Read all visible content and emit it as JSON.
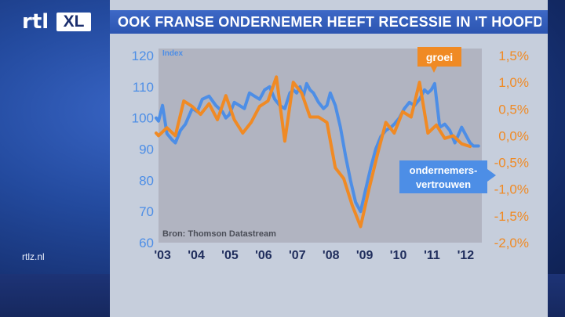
{
  "header": {
    "title": "OOK FRANSE ONDERNEMER HEEFT RECESSIE IN 'T HOOFD"
  },
  "logo": {
    "rtl": "rtl",
    "xl": "XL"
  },
  "footer": {
    "site": "rtlz.nl"
  },
  "colors": {
    "growth": "#f08a24",
    "confidence": "#4d8ee6",
    "panel": "#c6cedc",
    "plot": "#b1b4c1",
    "header": "#3560bd"
  },
  "chart_data": {
    "type": "line",
    "title": "",
    "source": "Bron: Thomson Datastream",
    "left_axis": {
      "label": "Index",
      "ylim": [
        60,
        120
      ],
      "ticks": [
        "120",
        "110",
        "100",
        "90",
        "80",
        "70",
        "60"
      ]
    },
    "right_axis": {
      "ylim": [
        -2.0,
        1.5
      ],
      "ticks": [
        "1,5%",
        "1,0%",
        "0,5%",
        "0,0%",
        "-0,5%",
        "-1,0%",
        "-1,5%",
        "-2,0%"
      ]
    },
    "x_ticks": [
      "'03",
      "'04",
      "'05",
      "'06",
      "'07",
      "'08",
      "'09",
      "'10",
      "'11",
      "'12"
    ],
    "xlim": [
      2003.0,
      2012.6
    ],
    "series": [
      {
        "name": "groei",
        "axis": "right",
        "color": "#f08a24",
        "x": [
          2002.93,
          2003.0,
          2003.25,
          2003.5,
          2003.75,
          2004.0,
          2004.25,
          2004.5,
          2004.75,
          2005.0,
          2005.25,
          2005.5,
          2005.75,
          2006.0,
          2006.25,
          2006.5,
          2006.75,
          2007.0,
          2007.25,
          2007.5,
          2007.75,
          2008.0,
          2008.25,
          2008.5,
          2008.75,
          2009.0,
          2009.25,
          2009.5,
          2009.75,
          2010.0,
          2010.25,
          2010.5,
          2010.75,
          2011.0,
          2011.25,
          2011.5,
          2011.75,
          2012.0,
          2012.25
        ],
        "y": [
          0.05,
          0.0,
          0.15,
          0.0,
          0.65,
          0.55,
          0.4,
          0.6,
          0.3,
          0.75,
          0.3,
          0.05,
          0.25,
          0.55,
          0.65,
          1.1,
          -0.1,
          1.0,
          0.8,
          0.35,
          0.35,
          0.25,
          -0.6,
          -0.8,
          -1.3,
          -1.7,
          -1.0,
          -0.35,
          0.25,
          0.05,
          0.45,
          0.35,
          1.0,
          0.05,
          0.2,
          -0.05,
          0.0,
          -0.15,
          -0.2
        ]
      },
      {
        "name": "ondernemersvertrouwen",
        "axis": "left",
        "color": "#4d8ee6",
        "x": [
          2002.93,
          2003.0,
          2003.12,
          2003.25,
          2003.4,
          2003.5,
          2003.65,
          2003.8,
          2004.0,
          2004.15,
          2004.3,
          2004.5,
          2004.7,
          2004.9,
          2005.0,
          2005.1,
          2005.25,
          2005.4,
          2005.55,
          2005.7,
          2005.85,
          2006.0,
          2006.15,
          2006.3,
          2006.45,
          2006.6,
          2006.75,
          2006.9,
          2007.0,
          2007.1,
          2007.2,
          2007.3,
          2007.4,
          2007.5,
          2007.6,
          2007.75,
          2007.9,
          2008.0,
          2008.1,
          2008.25,
          2008.4,
          2008.55,
          2008.7,
          2008.85,
          2009.0,
          2009.15,
          2009.3,
          2009.45,
          2009.6,
          2009.75,
          2009.9,
          2010.0,
          2010.15,
          2010.3,
          2010.45,
          2010.6,
          2010.75,
          2010.9,
          2011.0,
          2011.1,
          2011.2,
          2011.35,
          2011.5,
          2011.65,
          2011.8,
          2012.0,
          2012.15,
          2012.25,
          2012.35,
          2012.5
        ],
        "y": [
          100,
          99,
          104,
          95,
          93,
          92,
          96,
          98,
          103,
          102,
          106,
          107,
          104,
          102,
          100,
          101,
          105,
          104,
          103,
          108,
          107,
          106,
          109,
          110,
          106,
          104,
          103,
          108,
          109,
          108,
          110,
          107,
          111,
          109,
          108,
          105,
          103,
          104,
          108,
          104,
          97,
          88,
          80,
          73,
          70,
          77,
          84,
          90,
          94,
          96,
          97,
          98,
          100,
          103,
          105,
          104,
          106,
          109,
          108,
          109,
          111,
          97,
          98,
          96,
          92,
          97,
          94,
          92,
          91,
          91
        ]
      }
    ],
    "annotations": [
      {
        "text": "groei",
        "series": "groei"
      },
      {
        "text": "ondernemers-",
        "series": "ondernemersvertrouwen"
      },
      {
        "text": "vertrouwen",
        "series": "ondernemersvertrouwen"
      }
    ]
  }
}
